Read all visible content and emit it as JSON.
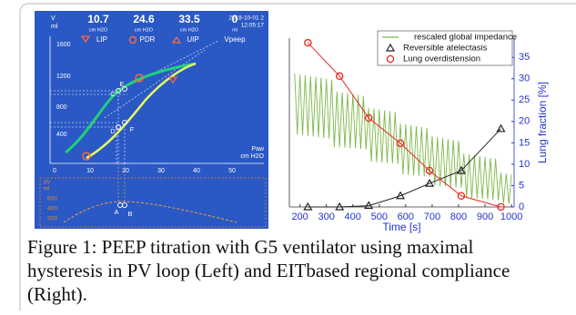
{
  "left_panel": {
    "header": {
      "y_label": "V",
      "y_unit": "ml",
      "readouts": [
        {
          "value": 10.7,
          "unit": "cm H2O",
          "name": "LIP"
        },
        {
          "value": 24.6,
          "unit": "cm H2O",
          "name": "PDR"
        },
        {
          "value": 33.5,
          "unit": "cm H2O",
          "name": "UIP"
        },
        {
          "value": 0,
          "unit": "ml",
          "name": "Vpeep"
        }
      ],
      "date": "2018-10-01 2",
      "time": "12:05:17"
    },
    "yticks": [
      1600,
      1200,
      800,
      400
    ],
    "xticks": [
      0,
      10,
      20,
      30,
      40,
      50
    ],
    "x_label": "Paw",
    "x_unit": "cm H2O",
    "points": [
      "C",
      "D",
      "E",
      "F",
      "A",
      "B"
    ],
    "lower": {
      "y_label": "dV",
      "y_unit": "ml",
      "yticks": [
        600,
        400,
        300
      ]
    }
  },
  "chart_data": {
    "type": "line",
    "x_label": "Time [s]",
    "y2_label": "Lung fraction [%]",
    "xlim": [
      160,
      1010
    ],
    "xticks": [
      200,
      300,
      400,
      500,
      600,
      700,
      800,
      900,
      1000
    ],
    "ylim": [
      0,
      39.5
    ],
    "y2lim": [
      0,
      39.5
    ],
    "y2ticks": [
      0,
      5,
      10,
      15,
      20,
      25,
      30,
      35
    ],
    "legend": "upper right",
    "series": [
      {
        "name": "rescaled global impedance",
        "color": "#7cb84a",
        "marker": "none",
        "x": [
          180,
          190,
          200,
          210,
          220,
          230,
          240,
          250,
          260,
          270,
          280,
          290,
          300,
          310,
          320,
          330,
          340,
          350,
          360,
          370,
          380,
          390,
          400,
          410,
          420,
          430,
          440,
          450,
          460,
          470,
          480,
          490,
          500,
          510,
          520,
          530,
          540,
          550,
          560,
          570,
          580,
          590,
          600,
          610,
          620,
          630,
          640,
          650,
          660,
          670,
          680,
          690,
          700,
          710,
          720,
          730,
          740,
          750,
          760,
          770,
          780,
          790,
          800,
          810,
          820,
          830,
          840,
          850,
          860,
          870,
          880,
          890,
          900,
          910,
          920,
          930,
          940,
          950,
          960,
          970,
          980,
          990,
          1000
        ],
        "values": [
          31.2,
          17,
          31,
          16.8,
          30.8,
          16.6,
          30.6,
          16.5,
          30.4,
          16.3,
          30.2,
          16.1,
          30,
          16,
          29.8,
          14,
          27,
          14,
          26.8,
          13.9,
          26.6,
          13.8,
          26.4,
          13.7,
          26.2,
          13.6,
          26,
          13.5,
          23.2,
          10.6,
          23,
          10.5,
          22.8,
          10.4,
          22.6,
          10.3,
          22.4,
          10.2,
          22.2,
          10.1,
          19.5,
          7.6,
          19.3,
          7.5,
          19.1,
          7.4,
          18.9,
          7.3,
          18.7,
          7.2,
          18.5,
          7.1,
          16.5,
          5,
          16.3,
          4.9,
          16.1,
          4.8,
          15.9,
          4.7,
          15.7,
          4.6,
          15.5,
          4.5,
          12.5,
          2.2,
          12.3,
          2.1,
          12.1,
          2,
          11.9,
          1.9,
          11.7,
          1.8,
          11.5,
          1.7,
          11.3,
          1.6,
          8,
          0.8,
          7.8,
          0.7,
          7.6
        ]
      },
      {
        "name": "Reversible atelectasis",
        "color": "#222222",
        "marker": "triangle",
        "axis": "y2",
        "x": [
          230,
          350,
          460,
          580,
          690,
          810,
          960
        ],
        "values": [
          0,
          0,
          0.3,
          2.6,
          5.5,
          8.5,
          18.3
        ]
      },
      {
        "name": "Lung overdistension",
        "color": "#e8281e",
        "marker": "circle",
        "axis": "y2",
        "x": [
          230,
          350,
          460,
          580,
          690,
          810,
          960
        ],
        "values": [
          38.4,
          30.6,
          20.8,
          14.9,
          8.5,
          2.6,
          0
        ]
      }
    ]
  },
  "caption": [
    "Figure 1: PEEP titration with G5 ventilator using maximal",
    "hysteresis in PV loop (Left) and EITbased regional compliance",
    "(Right)."
  ]
}
